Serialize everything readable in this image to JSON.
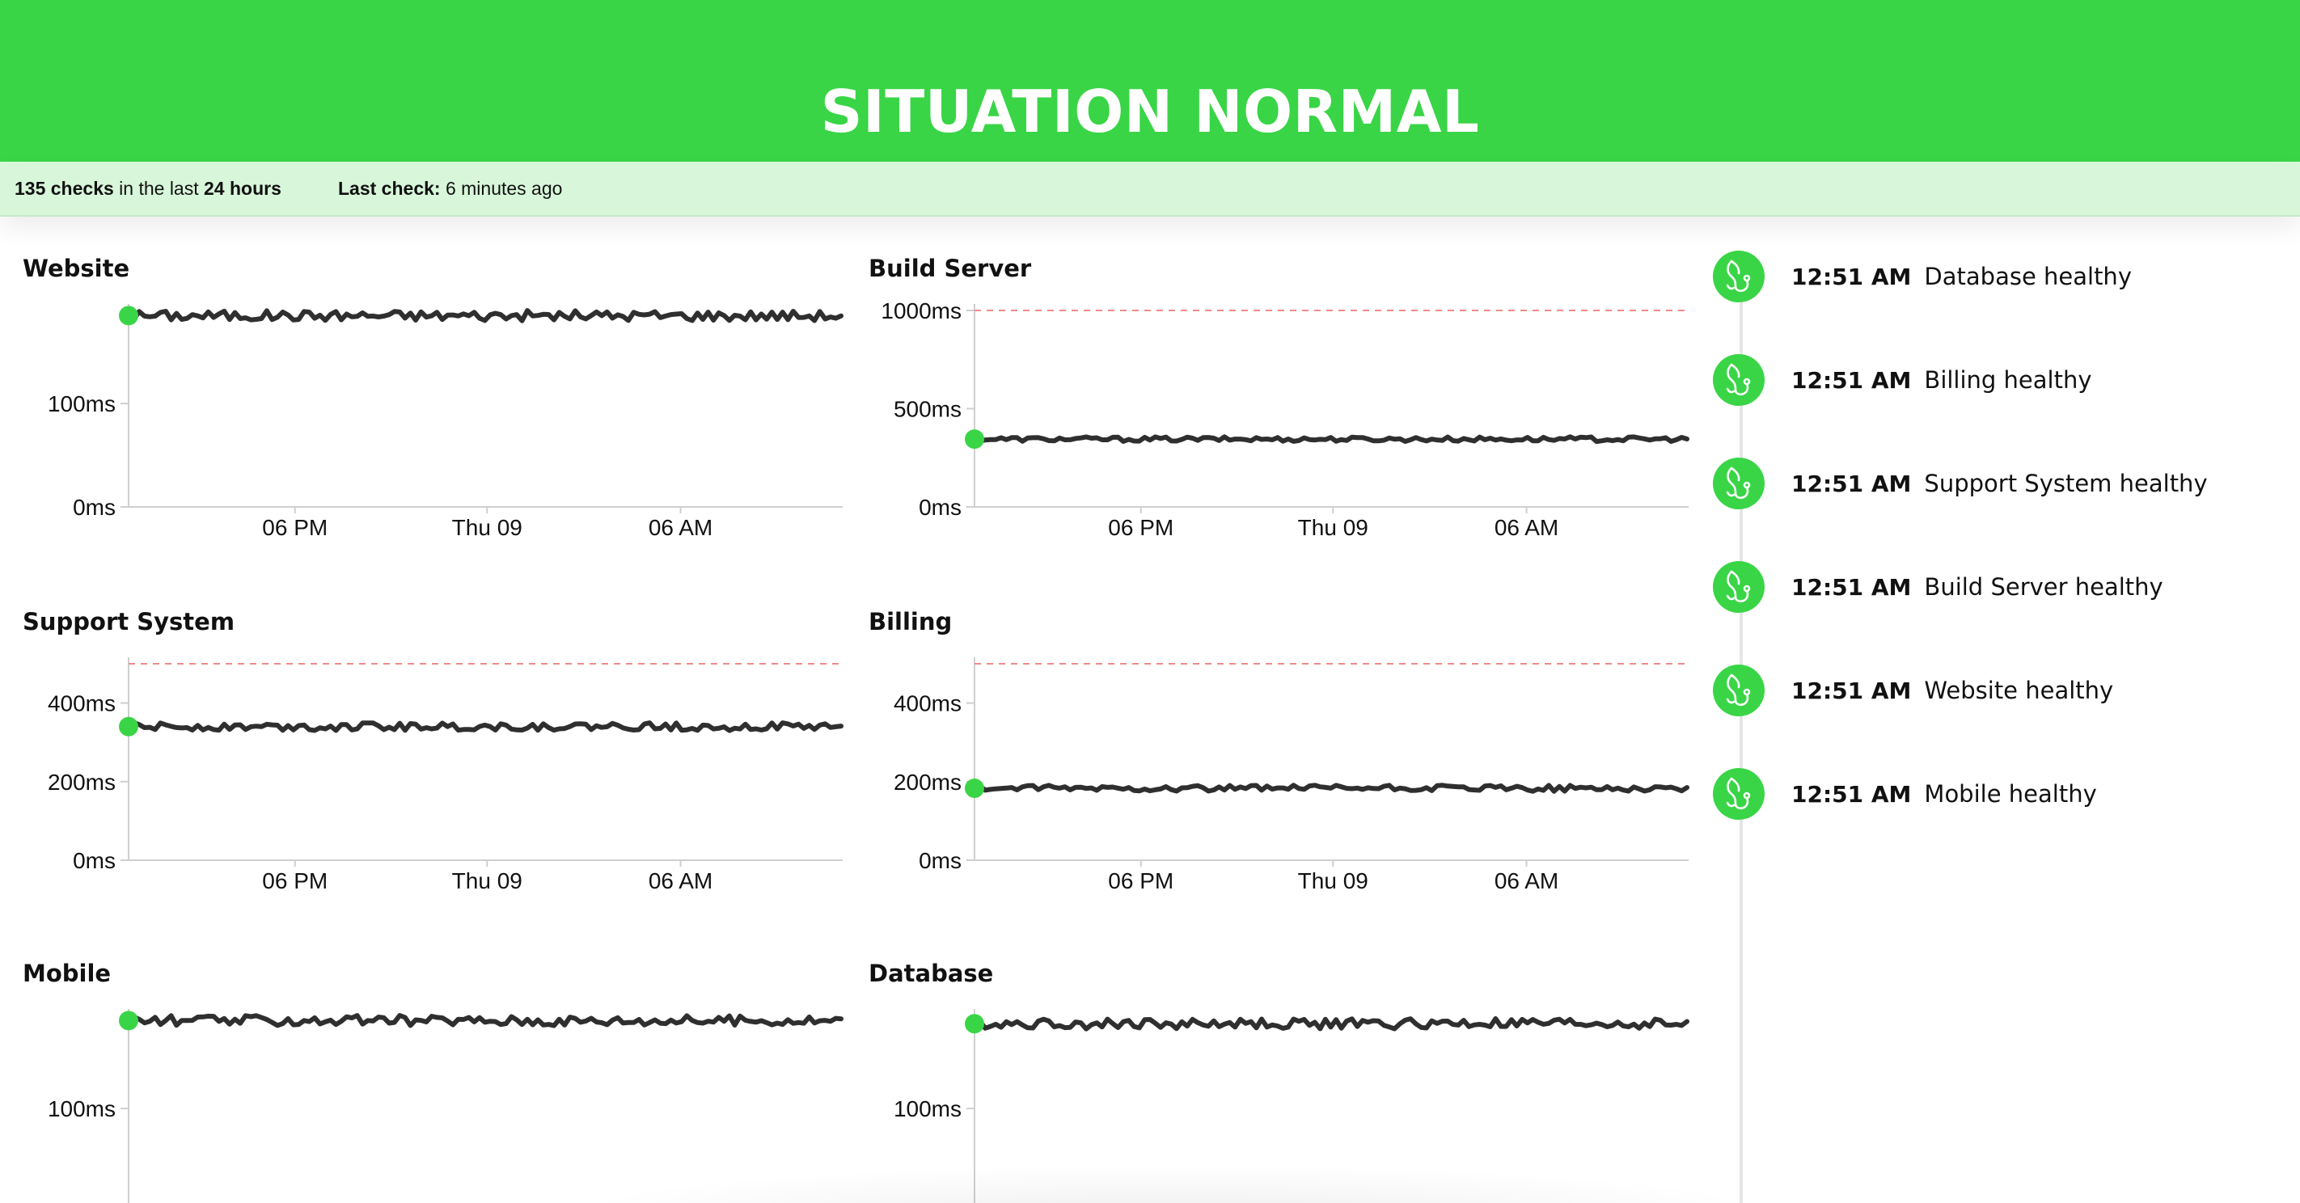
{
  "banner": {
    "title": "SITUATION NORMAL"
  },
  "status": {
    "checks_count": "135 checks",
    "checks_middle": " in the last ",
    "checks_period": "24 hours",
    "last_check_label": "Last check:",
    "last_check_value": " 6 minutes ago"
  },
  "colors": {
    "accent": "#39d546",
    "status_bar": "#d8f6da",
    "line": "#2f2f2f",
    "threshold": "#ef8a8a"
  },
  "chart_data": [
    {
      "type": "line",
      "title": "Website",
      "ylim": [
        0,
        190
      ],
      "y_ticks": [
        {
          "value": 0,
          "label": "0ms"
        },
        {
          "value": 100,
          "label": "100ms"
        }
      ],
      "x_ticks": [
        "06 PM",
        "Thu 09",
        "06 AM"
      ],
      "threshold": null,
      "series": [
        {
          "baseline": 185,
          "noise": 5
        }
      ],
      "grid": false
    },
    {
      "type": "line",
      "title": "Build Server",
      "ylim": [
        0,
        1000
      ],
      "y_ticks": [
        {
          "value": 0,
          "label": "0ms"
        },
        {
          "value": 500,
          "label": "500ms"
        },
        {
          "value": 1000,
          "label": "1000ms"
        }
      ],
      "x_ticks": [
        "06 PM",
        "Thu 09",
        "06 AM"
      ],
      "threshold": 1000,
      "series": [
        {
          "baseline": 345,
          "noise": 12
        }
      ],
      "grid": false
    },
    {
      "type": "line",
      "title": "Support System",
      "ylim": [
        0,
        500
      ],
      "y_ticks": [
        {
          "value": 0,
          "label": "0ms"
        },
        {
          "value": 200,
          "label": "200ms"
        },
        {
          "value": 400,
          "label": "400ms"
        }
      ],
      "x_ticks": [
        "06 PM",
        "Thu 09",
        "06 AM"
      ],
      "threshold": 500,
      "series": [
        {
          "baseline": 340,
          "noise": 10
        }
      ],
      "grid": false
    },
    {
      "type": "line",
      "title": "Billing",
      "ylim": [
        0,
        500
      ],
      "y_ticks": [
        {
          "value": 0,
          "label": "0ms"
        },
        {
          "value": 200,
          "label": "200ms"
        },
        {
          "value": 400,
          "label": "400ms"
        }
      ],
      "x_ticks": [
        "06 PM",
        "Thu 09",
        "06 AM"
      ],
      "threshold": 500,
      "series": [
        {
          "baseline": 183,
          "noise": 8
        }
      ],
      "grid": false
    },
    {
      "type": "line",
      "title": "Mobile",
      "ylim": [
        0,
        190
      ],
      "y_ticks": [
        {
          "value": 100,
          "label": "100ms"
        }
      ],
      "x_ticks": [],
      "threshold": null,
      "series": [
        {
          "baseline": 185,
          "noise": 5
        }
      ],
      "grid": false
    },
    {
      "type": "line",
      "title": "Database",
      "ylim": [
        0,
        190
      ],
      "y_ticks": [
        {
          "value": 100,
          "label": "100ms"
        }
      ],
      "x_ticks": [],
      "threshold": null,
      "series": [
        {
          "baseline": 182,
          "noise": 5
        }
      ],
      "grid": false
    }
  ],
  "events": [
    {
      "time": "12:51 AM",
      "text": "Database healthy",
      "icon": "stethoscope-icon"
    },
    {
      "time": "12:51 AM",
      "text": "Billing healthy",
      "icon": "stethoscope-icon"
    },
    {
      "time": "12:51 AM",
      "text": "Support System healthy",
      "icon": "stethoscope-icon"
    },
    {
      "time": "12:51 AM",
      "text": "Build Server healthy",
      "icon": "stethoscope-icon"
    },
    {
      "time": "12:51 AM",
      "text": "Website healthy",
      "icon": "stethoscope-icon"
    },
    {
      "time": "12:51 AM",
      "text": "Mobile healthy",
      "icon": "stethoscope-icon"
    }
  ]
}
